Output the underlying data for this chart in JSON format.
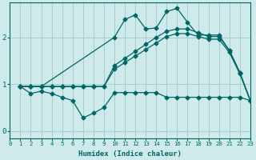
{
  "xlabel": "Humidex (Indice chaleur)",
  "bg_color": "#ceeaea",
  "grid_color": "#a8cccc",
  "line_color": "#006666",
  "x_ticks": [
    0,
    1,
    2,
    3,
    4,
    5,
    6,
    7,
    8,
    9,
    10,
    11,
    12,
    13,
    14,
    15,
    16,
    17,
    18,
    19,
    20,
    21,
    22,
    23
  ],
  "y_ticks": [
    0,
    1,
    2
  ],
  "xlim": [
    0,
    23
  ],
  "ylim": [
    -0.15,
    2.75
  ],
  "lines": [
    {
      "x": [
        1,
        2,
        3,
        4,
        5,
        6,
        7,
        8,
        9,
        10,
        11,
        12,
        13,
        14,
        15,
        16,
        17,
        18,
        19,
        20,
        21,
        22,
        23
      ],
      "y": [
        0.95,
        0.8,
        0.85,
        0.8,
        0.72,
        0.65,
        0.28,
        0.38,
        0.5,
        0.82,
        0.82,
        0.82,
        0.82,
        0.82,
        0.72,
        0.72,
        0.72,
        0.72,
        0.72,
        0.72,
        0.72,
        0.72,
        0.65
      ]
    },
    {
      "x": [
        1,
        2,
        3,
        4,
        5,
        6,
        7,
        8,
        9,
        10,
        11,
        12,
        13,
        14,
        15,
        16,
        17,
        18,
        19,
        20,
        21,
        22,
        23
      ],
      "y": [
        0.95,
        0.95,
        0.95,
        0.95,
        0.95,
        0.95,
        0.95,
        0.95,
        0.95,
        1.32,
        1.46,
        1.6,
        1.74,
        1.88,
        2.02,
        2.08,
        2.08,
        2.02,
        1.96,
        1.96,
        1.68,
        1.22,
        0.65
      ]
    },
    {
      "x": [
        1,
        2,
        3,
        4,
        5,
        6,
        7,
        8,
        9,
        10,
        11,
        12,
        13,
        14,
        15,
        16,
        17,
        18,
        19,
        20,
        21,
        22,
        23
      ],
      "y": [
        0.95,
        0.95,
        0.95,
        0.95,
        0.95,
        0.95,
        0.95,
        0.95,
        0.95,
        1.4,
        1.55,
        1.7,
        1.85,
        2.0,
        2.13,
        2.18,
        2.18,
        2.1,
        2.02,
        2.02,
        1.72,
        1.25,
        0.65
      ]
    },
    {
      "x": [
        1,
        2,
        3,
        10,
        11,
        12,
        13,
        14,
        15,
        16,
        17,
        18,
        19,
        20,
        21,
        22,
        23
      ],
      "y": [
        0.95,
        0.95,
        0.95,
        2.0,
        2.38,
        2.48,
        2.18,
        2.2,
        2.55,
        2.62,
        2.32,
        2.05,
        2.05,
        2.05,
        1.72,
        1.25,
        0.65
      ]
    }
  ]
}
